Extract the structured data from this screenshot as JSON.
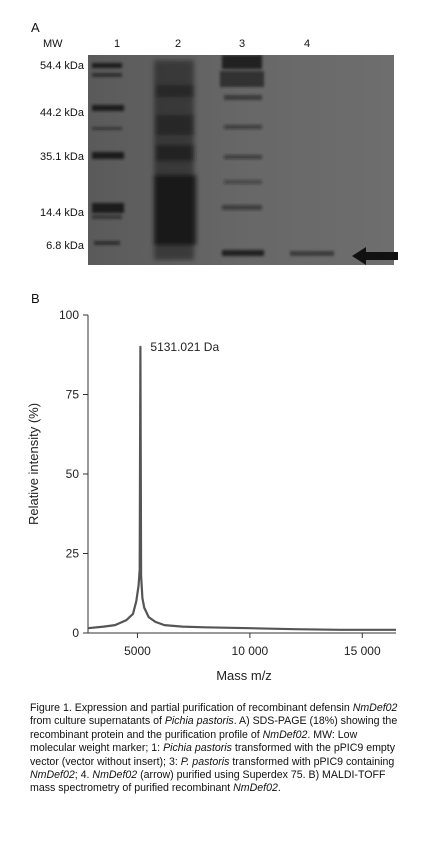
{
  "figure": {
    "panel_a_letter": "A",
    "panel_b_letter": "B",
    "gel": {
      "mw_header": "MW",
      "lanes": [
        "1",
        "2",
        "3",
        "4"
      ],
      "markers": [
        "54.4 kDa",
        "44.2 kDa",
        "35.1 kDa",
        "14.4 kDa",
        "6.8 kDa"
      ]
    },
    "caption": {
      "p1": "Figure 1. Expression and partial purification of recombinant defensin ",
      "gene": "NmDef02",
      "p2": " from culture supernatants of ",
      "organism": "Pichia pastoris",
      "p3": ". A) SDS-PAGE (18%) showing the recombinant protein and the purification profile of ",
      "p4": ". MW: Low molecular weight marker; 1: ",
      "p5": " transformed with the pPIC9 empty vector (vector without insert); 3: ",
      "organism_short": "P. pastoris",
      "p6": " transformed with pPIC9 containing ",
      "p7": "; 4. ",
      "p8": " (arrow) purified using Superdex 75. B) MALDI-TOFF mass spectrometry of purified recombinant ",
      "p9": "."
    }
  },
  "chart_data": {
    "type": "line",
    "xlabel": "Mass m/z",
    "ylabel": "Relative intensity (%)",
    "xlim": [
      2800,
      16500
    ],
    "ylim": [
      0,
      100
    ],
    "xticks": [
      5000,
      10000,
      15000
    ],
    "xtick_labels": [
      "5000",
      "10 000",
      "15 000"
    ],
    "yticks": [
      0,
      25,
      50,
      75,
      100
    ],
    "annotation": "5131.021 Da",
    "annotation_x": 5131,
    "series": [
      {
        "x": [
          2800,
          3500,
          4000,
          4500,
          4800,
          4950,
          5050,
          5100,
          5131,
          5160,
          5220,
          5300,
          5500,
          5800,
          6200,
          7000,
          8000,
          10000,
          12000,
          14000,
          16500
        ],
        "values": [
          1.5,
          2,
          2.5,
          4,
          6,
          10,
          15,
          20,
          90,
          18,
          11,
          8,
          5,
          3.5,
          2.5,
          2,
          1.8,
          1.5,
          1.2,
          1.0,
          1.0
        ]
      }
    ]
  }
}
